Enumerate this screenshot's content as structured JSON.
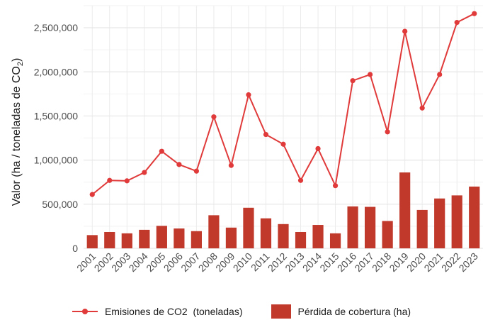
{
  "chart_data": {
    "type": "bar+line",
    "categories": [
      "2001",
      "2002",
      "2003",
      "2004",
      "2005",
      "2006",
      "2007",
      "2008",
      "2009",
      "2010",
      "2011",
      "2012",
      "2013",
      "2014",
      "2015",
      "2016",
      "2017",
      "2018",
      "2019",
      "2020",
      "2021",
      "2022",
      "2023"
    ],
    "series": [
      {
        "name": "Pérdida de cobertura (ha)",
        "type": "bar",
        "color": "#c0392b",
        "values": [
          150000,
          185000,
          170000,
          210000,
          255000,
          225000,
          195000,
          375000,
          235000,
          460000,
          340000,
          275000,
          185000,
          265000,
          170000,
          475000,
          470000,
          310000,
          860000,
          435000,
          565000,
          600000,
          700000
        ]
      },
      {
        "name": "Emisiones de CO2  (toneladas)",
        "type": "line",
        "color": "#e03a3a",
        "values": [
          610000,
          770000,
          765000,
          860000,
          1100000,
          950000,
          875000,
          1490000,
          940000,
          1740000,
          1290000,
          1180000,
          770000,
          1130000,
          710000,
          1900000,
          1970000,
          1320000,
          2460000,
          1590000,
          1970000,
          2560000,
          2660000
        ]
      }
    ],
    "ylabel": "Valor (ha / toneladas de CO2)",
    "ylim": [
      0,
      2750000
    ],
    "yticks": [
      "0",
      "500,000",
      "1,000,000",
      "1,500,000",
      "2,000,000",
      "2,500,000"
    ],
    "ytick_values": [
      0,
      500000,
      1000000,
      1500000,
      2000000,
      2500000
    ],
    "grid": true,
    "legend_position": "bottom",
    "legend": {
      "line_label": "Emisiones de CO2  (toneladas)",
      "bar_label": "Pérdida de cobertura (ha)"
    }
  }
}
